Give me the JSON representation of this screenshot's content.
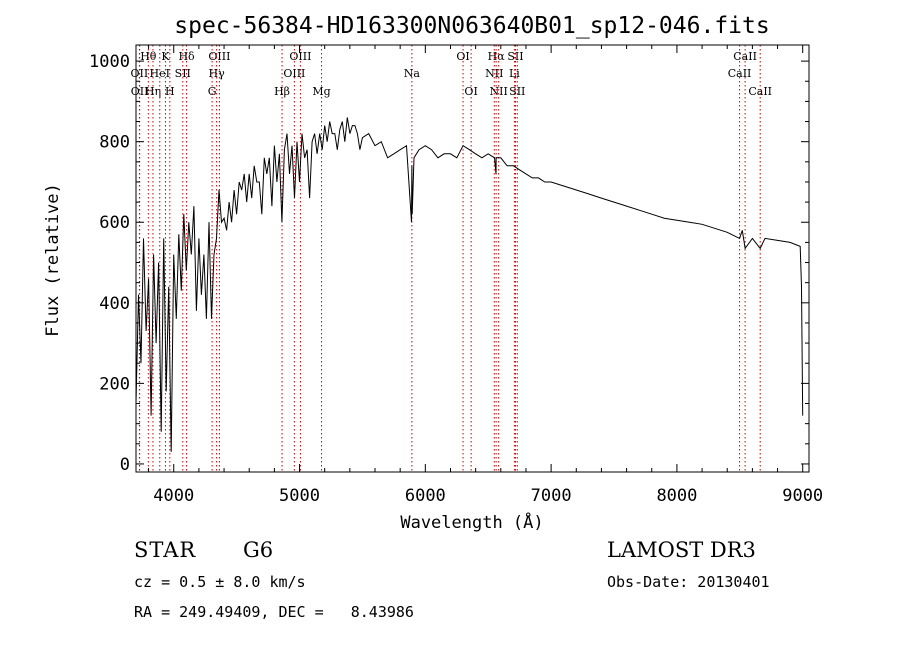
{
  "chart_data": {
    "type": "line",
    "title": "spec-56384-HD163300N063640B01_sp12-046.fits",
    "xlabel": "Wavelength (Å)",
    "ylabel": "Flux (relative)",
    "xlim": [
      3700,
      9050
    ],
    "ylim": [
      -20,
      1040
    ],
    "xticks": [
      4000,
      5000,
      6000,
      7000,
      8000,
      9000
    ],
    "yticks": [
      0,
      200,
      400,
      600,
      800,
      1000
    ],
    "line_color": "#000000",
    "marker_color": "#cc0000",
    "series": [
      {
        "name": "flux",
        "x": [
          3700,
          3720,
          3740,
          3760,
          3780,
          3800,
          3820,
          3840,
          3860,
          3880,
          3900,
          3920,
          3940,
          3960,
          3980,
          4000,
          4020,
          4040,
          4060,
          4080,
          4100,
          4120,
          4140,
          4160,
          4180,
          4200,
          4220,
          4240,
          4260,
          4280,
          4300,
          4320,
          4340,
          4360,
          4380,
          4400,
          4420,
          4440,
          4460,
          4480,
          4500,
          4520,
          4540,
          4560,
          4580,
          4600,
          4620,
          4640,
          4660,
          4680,
          4700,
          4720,
          4740,
          4760,
          4780,
          4800,
          4820,
          4840,
          4860,
          4880,
          4900,
          4920,
          4940,
          4960,
          4980,
          5000,
          5020,
          5040,
          5060,
          5080,
          5100,
          5120,
          5140,
          5160,
          5180,
          5200,
          5220,
          5240,
          5260,
          5280,
          5300,
          5320,
          5340,
          5360,
          5380,
          5400,
          5420,
          5440,
          5460,
          5480,
          5500,
          5550,
          5600,
          5650,
          5700,
          5750,
          5800,
          5850,
          5890,
          5893,
          5896,
          5910,
          5950,
          6000,
          6050,
          6100,
          6150,
          6200,
          6250,
          6300,
          6350,
          6400,
          6450,
          6500,
          6550,
          6562,
          6563,
          6600,
          6650,
          6700,
          6750,
          6800,
          6850,
          6900,
          6950,
          7000,
          7100,
          7200,
          7300,
          7400,
          7500,
          7600,
          7700,
          7800,
          7900,
          8000,
          8100,
          8200,
          8300,
          8400,
          8498,
          8520,
          8542,
          8600,
          8662,
          8700,
          8800,
          8900,
          8980,
          8990,
          9000
        ],
        "y": [
          150,
          420,
          250,
          560,
          330,
          460,
          120,
          520,
          300,
          500,
          80,
          560,
          180,
          440,
          30,
          520,
          360,
          570,
          430,
          620,
          480,
          600,
          520,
          640,
          380,
          560,
          420,
          520,
          360,
          600,
          360,
          520,
          560,
          680,
          600,
          610,
          580,
          650,
          600,
          680,
          620,
          700,
          680,
          720,
          650,
          720,
          660,
          740,
          700,
          700,
          620,
          760,
          720,
          760,
          640,
          790,
          700,
          770,
          600,
          780,
          820,
          720,
          790,
          660,
          800,
          700,
          820,
          760,
          780,
          660,
          800,
          820,
          770,
          820,
          780,
          840,
          800,
          850,
          820,
          820,
          780,
          830,
          850,
          800,
          860,
          820,
          840,
          840,
          820,
          780,
          810,
          820,
          790,
          800,
          760,
          770,
          780,
          790,
          600,
          740,
          620,
          760,
          780,
          790,
          780,
          760,
          770,
          770,
          760,
          790,
          780,
          770,
          760,
          770,
          760,
          720,
          760,
          760,
          740,
          740,
          730,
          720,
          710,
          710,
          700,
          700,
          690,
          680,
          670,
          660,
          650,
          640,
          630,
          620,
          610,
          605,
          600,
          595,
          585,
          575,
          560,
          580,
          535,
          560,
          535,
          560,
          555,
          550,
          540,
          440,
          120
        ]
      }
    ],
    "lines": [
      {
        "label": "Hθ",
        "x": 3798,
        "row": 0
      },
      {
        "label": "OII",
        "x": 3727,
        "row": 1
      },
      {
        "label": "OII",
        "x": 3729,
        "row": 2
      },
      {
        "label": "Hη",
        "x": 3835,
        "row": 2
      },
      {
        "label": "HeI",
        "x": 3889,
        "row": 1
      },
      {
        "label": "K",
        "x": 3934,
        "row": 0
      },
      {
        "label": "H",
        "x": 3969,
        "row": 2
      },
      {
        "label": "SII",
        "x": 4072,
        "row": 1
      },
      {
        "label": "Hδ",
        "x": 4102,
        "row": 0
      },
      {
        "label": "OIII",
        "x": 4363,
        "row": 0
      },
      {
        "label": "Hγ",
        "x": 4341,
        "row": 1
      },
      {
        "label": "G",
        "x": 4305,
        "row": 2
      },
      {
        "label": "Hβ",
        "x": 4861,
        "row": 2
      },
      {
        "label": "OIII",
        "x": 5007,
        "row": 0
      },
      {
        "label": "OIII",
        "x": 4959,
        "row": 1
      },
      {
        "label": "Mg",
        "x": 5175,
        "row": 2
      },
      {
        "label": "Na",
        "x": 5893,
        "row": 1
      },
      {
        "label": "OI",
        "x": 6300,
        "row": 0
      },
      {
        "label": "OI",
        "x": 6364,
        "row": 2
      },
      {
        "label": "Hα",
        "x": 6563,
        "row": 0
      },
      {
        "label": "NII",
        "x": 6548,
        "row": 1
      },
      {
        "label": "NII",
        "x": 6583,
        "row": 2
      },
      {
        "label": "SII",
        "x": 6717,
        "row": 0
      },
      {
        "label": "Li",
        "x": 6708,
        "row": 1
      },
      {
        "label": "SII",
        "x": 6731,
        "row": 2
      },
      {
        "label": "CaII",
        "x": 8542,
        "row": 0
      },
      {
        "label": "CaII",
        "x": 8498,
        "row": 1
      },
      {
        "label": "CaII",
        "x": 8662,
        "row": 2
      }
    ]
  },
  "info": {
    "object_class": "STAR",
    "subclass": "G6",
    "survey": "LAMOST DR3",
    "redshift": "cz = 0.5 ± 8.0 km/s",
    "obs_date": "Obs-Date: 20130401",
    "coords": "RA = 249.49409, DEC =   8.43986"
  }
}
